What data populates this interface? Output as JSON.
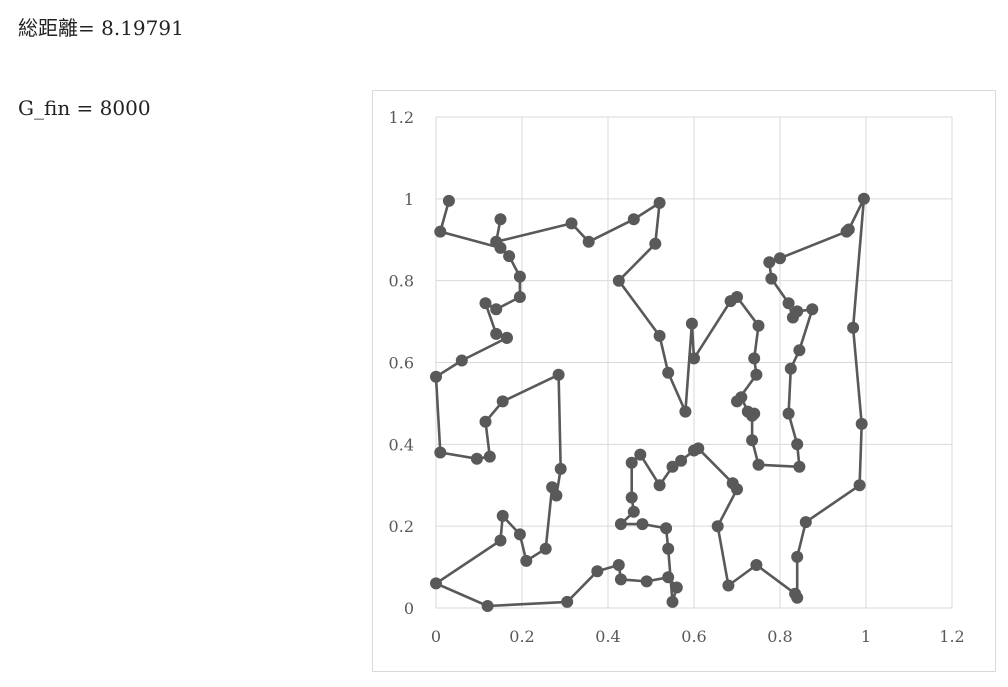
{
  "header": {
    "total_distance_label": "総距離= 8.19791",
    "g_fin_label": "G_fin = 8000"
  },
  "chart_data": {
    "type": "line",
    "title": "",
    "xlabel": "",
    "ylabel": "",
    "xlim": [
      0,
      1.2
    ],
    "ylim": [
      0,
      1.2
    ],
    "xticks": [
      "0",
      "0.2",
      "0.4",
      "0.6",
      "0.8",
      "1",
      "1.2"
    ],
    "yticks": [
      "0",
      "0.2",
      "0.4",
      "0.6",
      "0.8",
      "1",
      "1.2"
    ],
    "grid": true,
    "legend": "none",
    "series_color": "#595959",
    "x": [
      0.03,
      0.01,
      0.15,
      0.17,
      0.195,
      0.195,
      0.14,
      0.115,
      0.14,
      0.165,
      0.165,
      0.06,
      0.0,
      0.01,
      0.095,
      0.125,
      0.115,
      0.155,
      0.285,
      0.29,
      0.28,
      0.27,
      0.255,
      0.21,
      0.195,
      0.155,
      0.15,
      0.0,
      0.12,
      0.305,
      0.375,
      0.425,
      0.43,
      0.49,
      0.54,
      0.56,
      0.55,
      0.54,
      0.535,
      0.48,
      0.43,
      0.46,
      0.455,
      0.455,
      0.475,
      0.52,
      0.55,
      0.57,
      0.6,
      0.61,
      0.69,
      0.7,
      0.655,
      0.68,
      0.745,
      0.835,
      0.84,
      0.84,
      0.86,
      0.985,
      0.99,
      0.97,
      0.995,
      0.96,
      0.955,
      0.8,
      0.775,
      0.78,
      0.82,
      0.83,
      0.84,
      0.875,
      0.845,
      0.825,
      0.82,
      0.84,
      0.845,
      0.75,
      0.735,
      0.735,
      0.74,
      0.725,
      0.71,
      0.7,
      0.745,
      0.74,
      0.75,
      0.7,
      0.685,
      0.6,
      0.595,
      0.58,
      0.54,
      0.52,
      0.425,
      0.51,
      0.52,
      0.46,
      0.355,
      0.315,
      0.14,
      0.15
    ],
    "y": [
      0.995,
      0.92,
      0.88,
      0.86,
      0.81,
      0.76,
      0.73,
      0.745,
      0.67,
      0.66,
      0.66,
      0.605,
      0.565,
      0.38,
      0.365,
      0.37,
      0.455,
      0.505,
      0.57,
      0.34,
      0.275,
      0.295,
      0.145,
      0.115,
      0.18,
      0.225,
      0.165,
      0.06,
      0.005,
      0.015,
      0.09,
      0.105,
      0.07,
      0.065,
      0.075,
      0.05,
      0.015,
      0.145,
      0.195,
      0.205,
      0.205,
      0.235,
      0.27,
      0.355,
      0.375,
      0.3,
      0.345,
      0.36,
      0.385,
      0.39,
      0.305,
      0.29,
      0.2,
      0.055,
      0.105,
      0.035,
      0.025,
      0.125,
      0.21,
      0.3,
      0.45,
      0.685,
      1.0,
      0.925,
      0.92,
      0.855,
      0.845,
      0.805,
      0.745,
      0.71,
      0.725,
      0.73,
      0.63,
      0.585,
      0.475,
      0.4,
      0.345,
      0.35,
      0.41,
      0.47,
      0.475,
      0.48,
      0.515,
      0.505,
      0.57,
      0.61,
      0.69,
      0.76,
      0.75,
      0.61,
      0.695,
      0.48,
      0.575,
      0.665,
      0.8,
      0.89,
      0.99,
      0.95,
      0.895,
      0.94,
      0.895,
      0.95
    ]
  }
}
